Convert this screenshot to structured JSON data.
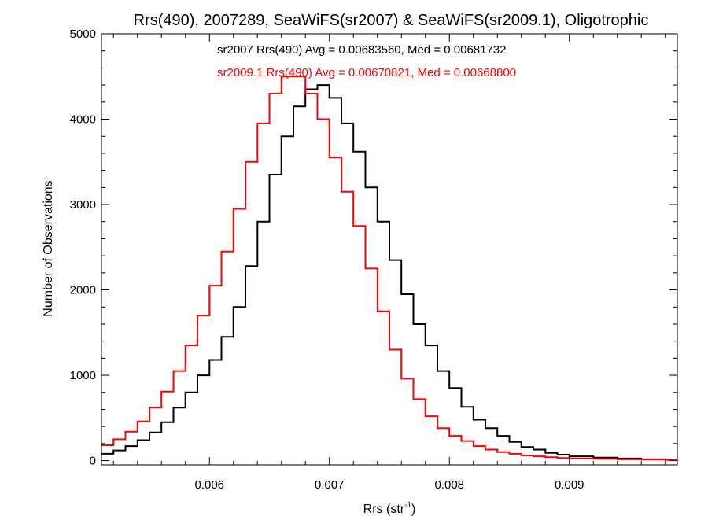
{
  "chart_data": {
    "type": "line",
    "title": "Rrs(490), 2007289, SeaWiFS(sr2007) & SeaWiFS(sr2009.1), Oligotrophic",
    "xlabel": {
      "base": "Rrs (str",
      "superscript": "-1",
      "suffix": ")"
    },
    "ylabel": "Number of Observations",
    "xlim": [
      0.0051,
      0.0099
    ],
    "ylim": [
      -50,
      5000
    ],
    "xticks": [
      {
        "value": 0.006,
        "label": "0.006"
      },
      {
        "value": 0.007,
        "label": "0.007"
      },
      {
        "value": 0.008,
        "label": "0.008"
      },
      {
        "value": 0.009,
        "label": "0.009"
      }
    ],
    "yticks": [
      {
        "value": 0,
        "label": "0"
      },
      {
        "value": 1000,
        "label": "1000"
      },
      {
        "value": 2000,
        "label": "2000"
      },
      {
        "value": 3000,
        "label": "3000"
      },
      {
        "value": 4000,
        "label": "4000"
      },
      {
        "value": 5000,
        "label": "5000"
      }
    ],
    "step": "histogram",
    "annotations": [
      {
        "text": "sr2007 Rrs(490) Avg = 0.00683560, Med = 0.00681732",
        "color": "#000000"
      },
      {
        "text": "sr2009.1 Rrs(490) Avg = 0.00670821, Med = 0.00668800",
        "color": "#ff0000"
      }
    ],
    "series": [
      {
        "color": "#000000",
        "x": [
          0.0051,
          0.0052,
          0.0053,
          0.0054,
          0.0055,
          0.0056,
          0.0057,
          0.0058,
          0.0059,
          0.006,
          0.0061,
          0.0062,
          0.0063,
          0.0064,
          0.0065,
          0.0066,
          0.0067,
          0.0068,
          0.0069,
          0.007,
          0.0071,
          0.0072,
          0.0073,
          0.0074,
          0.0075,
          0.0076,
          0.0077,
          0.0078,
          0.0079,
          0.008,
          0.0081,
          0.0082,
          0.0083,
          0.0084,
          0.0085,
          0.0086,
          0.0087,
          0.0088,
          0.0089,
          0.009,
          0.0092,
          0.0094,
          0.0096,
          0.0098,
          0.0099
        ],
        "y": [
          80,
          120,
          170,
          240,
          330,
          450,
          620,
          800,
          1000,
          1180,
          1450,
          1800,
          2280,
          2800,
          3350,
          3800,
          4150,
          4350,
          4400,
          4250,
          3950,
          3620,
          3200,
          2800,
          2350,
          1950,
          1600,
          1350,
          1050,
          850,
          630,
          480,
          380,
          290,
          220,
          160,
          130,
          90,
          70,
          50,
          35,
          25,
          15,
          10,
          5
        ]
      },
      {
        "color": "#ff0000",
        "x": [
          0.0051,
          0.0052,
          0.0053,
          0.0054,
          0.0055,
          0.0056,
          0.0057,
          0.0058,
          0.0059,
          0.006,
          0.0061,
          0.0062,
          0.0063,
          0.0064,
          0.0065,
          0.0066,
          0.0067,
          0.0068,
          0.0069,
          0.007,
          0.0071,
          0.0072,
          0.0073,
          0.0074,
          0.0075,
          0.0076,
          0.0077,
          0.0078,
          0.0079,
          0.008,
          0.0081,
          0.0082,
          0.0083,
          0.0084,
          0.0085,
          0.0086,
          0.0087,
          0.0088,
          0.0089,
          0.009,
          0.0092,
          0.0094,
          0.0096,
          0.0098,
          0.0099
        ],
        "y": [
          180,
          250,
          340,
          460,
          620,
          810,
          1050,
          1350,
          1700,
          2050,
          2450,
          2950,
          3500,
          3950,
          4300,
          4500,
          4500,
          4300,
          4000,
          3550,
          3150,
          2750,
          2250,
          1750,
          1300,
          960,
          720,
          520,
          380,
          290,
          230,
          170,
          130,
          100,
          80,
          60,
          50,
          40,
          30,
          25,
          20,
          15,
          12,
          8,
          5
        ]
      }
    ]
  }
}
